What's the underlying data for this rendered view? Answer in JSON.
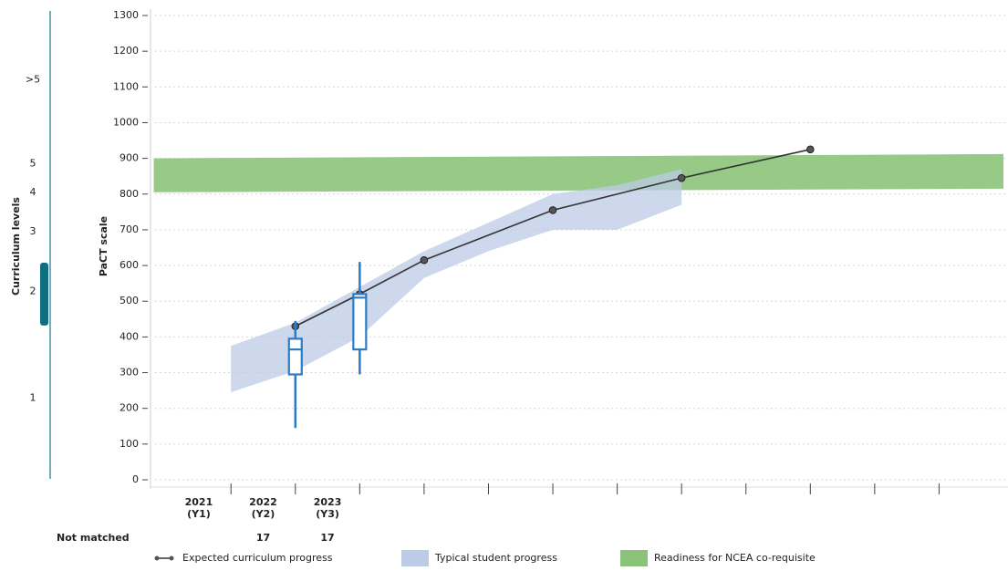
{
  "chart_data": {
    "type": "line",
    "y_axis_label": "PaCT scale",
    "ylim": [
      0,
      1300
    ],
    "yticks": [
      0,
      100,
      200,
      300,
      400,
      500,
      600,
      700,
      800,
      900,
      1000,
      1100,
      1200,
      1300
    ],
    "xlim": [
      -1.25,
      12
    ],
    "xticks": [
      0,
      1,
      2,
      3,
      4,
      5,
      6,
      7,
      8,
      9,
      10,
      11
    ],
    "year_labels": [
      {
        "x": -0.5,
        "lines": [
          "2021",
          "(Y1)"
        ]
      },
      {
        "x": 0.5,
        "lines": [
          "2022",
          "(Y2)"
        ]
      },
      {
        "x": 1.5,
        "lines": [
          "2023",
          "(Y3)"
        ]
      }
    ],
    "not_matched": {
      "label": "Not matched",
      "values": [
        null,
        17,
        17
      ]
    },
    "grid": true,
    "series": [
      {
        "name": "Expected curriculum progress",
        "color": "#333333",
        "x": [
          1,
          2,
          3,
          5,
          7,
          9
        ],
        "values": [
          430,
          520,
          615,
          755,
          845,
          925
        ]
      }
    ],
    "bands": [
      {
        "name": "Readiness for NCEA co-requisite",
        "color": "#8cc37a",
        "x": [
          -1.2,
          12
        ],
        "lower": [
          805,
          815
        ],
        "upper": [
          900,
          912
        ]
      },
      {
        "name": "Typical student progress",
        "color": "#bccbe6",
        "x": [
          0,
          1,
          2,
          3,
          4,
          5,
          6,
          7
        ],
        "lower": [
          245,
          305,
          400,
          565,
          640,
          700,
          700,
          770
        ],
        "upper": [
          375,
          440,
          540,
          640,
          720,
          800,
          825,
          870
        ]
      }
    ],
    "box_color": "#2a7dc4",
    "boxes": [
      {
        "x": 1,
        "whisker_low": 145,
        "q1": 295,
        "median": 365,
        "q3": 395,
        "whisker_high": 445
      },
      {
        "x": 2,
        "whisker_low": 295,
        "q1": 365,
        "median": 510,
        "q3": 520,
        "whisker_high": 610
      }
    ],
    "curriculum_levels": {
      "label": "Curriculum levels",
      "ticks": [
        {
          "value": 1120,
          "label": ">5"
        },
        {
          "value": 885,
          "label": "5"
        },
        {
          "value": 805,
          "label": "4"
        },
        {
          "value": 695,
          "label": "3"
        },
        {
          "value": 527,
          "label": "2"
        },
        {
          "value": 228,
          "label": "1"
        }
      ],
      "highlight": [
        432,
        608
      ],
      "highlight_color": "#0f6e80"
    }
  }
}
